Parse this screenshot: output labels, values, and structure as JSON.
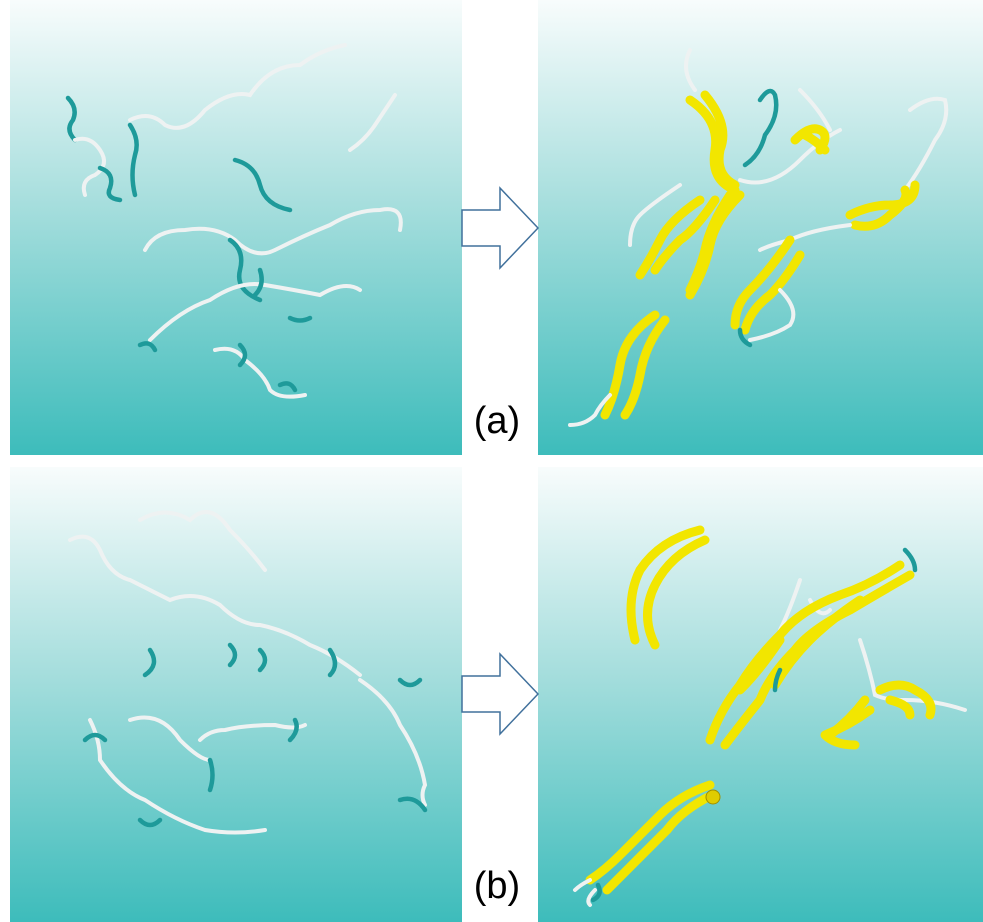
{
  "figure": {
    "panel_labels": [
      "(a)",
      "(b)"
    ]
  }
}
